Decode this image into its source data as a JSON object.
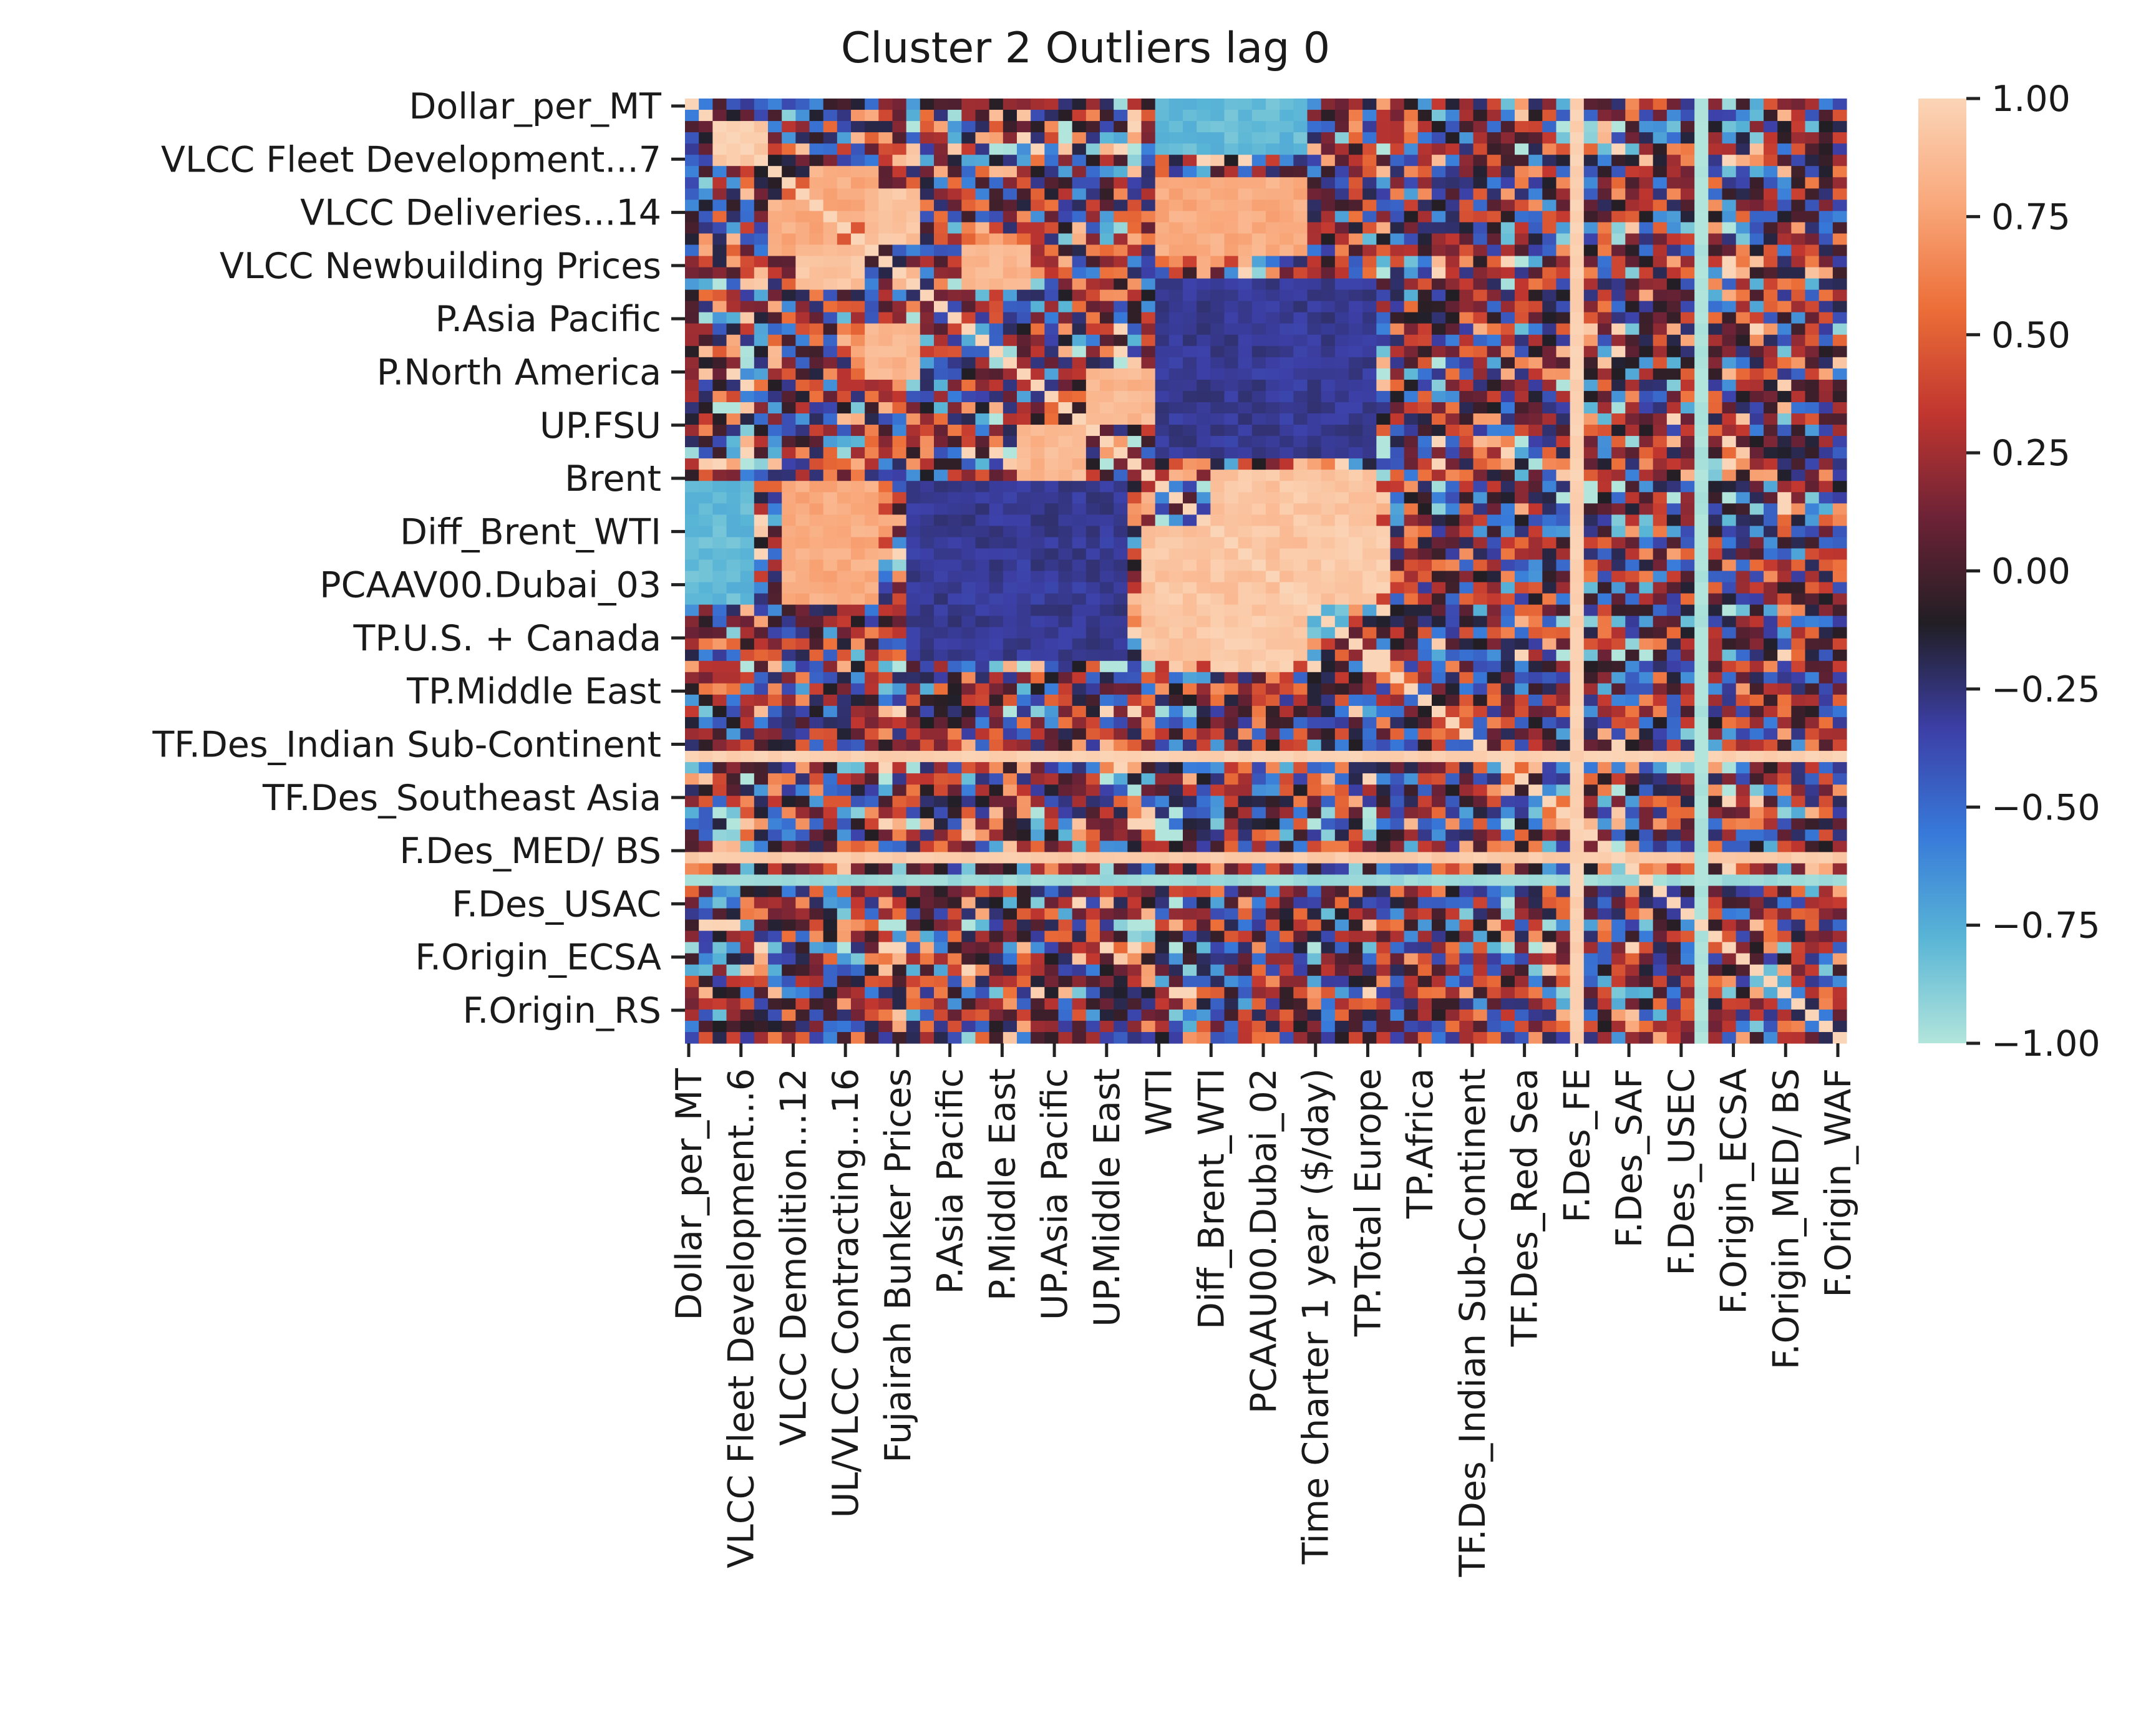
{
  "chart_data": {
    "type": "heatmap",
    "title": "Cluster 2 Outliers lag 0",
    "xlabel": "",
    "ylabel": "",
    "grid": false,
    "legend": "colorbar-right",
    "rows": 84,
    "cols": 84,
    "seed": 20240517,
    "y_tick_labels": [
      "Dollar_per_MT",
      "VLCC Fleet Development...7",
      "VLCC Deliveries...14",
      "VLCC Newbuilding Prices",
      "P.Asia Pacific",
      "P.North America",
      "UP.FSU",
      "Brent",
      "Diff_Brent_WTI",
      "PCAAV00.Dubai_03",
      "TP.U.S. + Canada",
      "TP.Middle East",
      "TF.Des_Indian Sub-Continent",
      "TF.Des_Southeast Asia",
      "F.Des_MED/ BS",
      "F.Des_USAC",
      "F.Origin_ECSA",
      "F.Origin_RS"
    ],
    "x_tick_labels": [
      "Dollar_per_MT",
      "VLCC Fleet Development...6",
      "VLCC Demolition...12",
      "UL/VLCC Contracting...16",
      "Fujairah Bunker Prices",
      "P.Asia Pacific",
      "P.Middle East",
      "UP.Asia Pacific",
      "UP.Middle East",
      "WTI",
      "Diff_Brent_WTI",
      "PCAAU00.Dubai_02",
      "Time Charter 1 year ($/day)",
      "TP.Total Europe",
      "TP.Africa",
      "TF.Des_Indian Sub-Continent",
      "TF.Des_Red Sea",
      "F.Des_FE",
      "F.Des_SAF",
      "F.Des_USEC",
      "F.Origin_ECSA",
      "F.Origin_MED/ BS",
      "F.Origin_WAF"
    ],
    "colorbar": {
      "vmin": -1.0,
      "vmax": 1.0,
      "ticks": [
        "1.00",
        "0.75",
        "0.50",
        "0.25",
        "0.00",
        "−0.25",
        "−0.50",
        "−0.75",
        "−1.00"
      ],
      "colors": [
        "#b2e5db",
        "#59b5d6",
        "#3779d9",
        "#3c3fa6",
        "#211e24",
        "#6c2236",
        "#c1362f",
        "#ec6e38",
        "#f9a87b",
        "#fbd5b7"
      ]
    },
    "blocks": [
      {
        "r0": 2,
        "r1": 6,
        "c0": 2,
        "c1": 6,
        "v": 0.95
      },
      {
        "r0": 6,
        "r1": 11,
        "c0": 9,
        "c1": 14,
        "v": 0.8
      },
      {
        "r0": 8,
        "r1": 13,
        "c0": 13,
        "c1": 17,
        "v": 0.9
      },
      {
        "r0": 13,
        "r1": 17,
        "c0": 20,
        "c1": 25,
        "v": 0.85
      },
      {
        "r0": 24,
        "r1": 29,
        "c0": 29,
        "c1": 34,
        "v": 0.85
      },
      {
        "r0": 33,
        "r1": 45,
        "c0": 38,
        "c1": 50,
        "v": 0.92
      },
      {
        "r0": 38,
        "r1": 44,
        "c0": 46,
        "c1": 51,
        "v": 0.96
      },
      {
        "r0": 34,
        "r1": 45,
        "c0": 7,
        "c1": 14,
        "v": 0.8
      },
      {
        "r0": 34,
        "r1": 45,
        "c0": 0,
        "c1": 5,
        "v": -0.8
      },
      {
        "r0": 16,
        "r1": 32,
        "c0": 34,
        "c1": 50,
        "v": -0.3
      }
    ],
    "special_rows": [
      {
        "row": 58,
        "v": 0.98
      },
      {
        "row": 67,
        "v": 0.95
      },
      {
        "row": 69,
        "v": -0.95
      }
    ],
    "special_cols": [
      {
        "col": 64,
        "v": 0.98
      },
      {
        "col": 73,
        "v": -1.0
      }
    ]
  }
}
